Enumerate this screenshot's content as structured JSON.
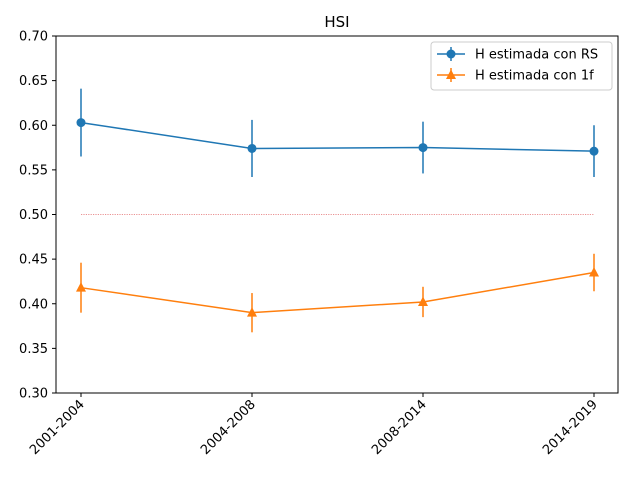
{
  "chart_data": {
    "type": "line",
    "title": "HSI",
    "categories": [
      "2001-2004",
      "2004-2008",
      "2008-2014",
      "2014-2019"
    ],
    "ylim": [
      0.3,
      0.7
    ],
    "yticks": [
      0.3,
      0.35,
      0.4,
      0.45,
      0.5,
      0.55,
      0.6,
      0.65,
      0.7
    ],
    "ytick_labels": [
      "0.30",
      "0.35",
      "0.40",
      "0.45",
      "0.50",
      "0.55",
      "0.60",
      "0.65",
      "0.70"
    ],
    "reference_line": {
      "y": 0.5,
      "color": "#d62728"
    },
    "grid": false,
    "legend_position": "top-right",
    "series": [
      {
        "name": "H estimada con RS",
        "color": "#1f77b4",
        "marker": "circle",
        "values": [
          0.603,
          0.574,
          0.575,
          0.571
        ],
        "yerr": [
          0.038,
          0.032,
          0.029,
          0.029
        ]
      },
      {
        "name": "H estimada con 1f",
        "color": "#ff7f0e",
        "marker": "triangle",
        "values": [
          0.418,
          0.39,
          0.402,
          0.435
        ],
        "yerr": [
          0.028,
          0.022,
          0.017,
          0.021
        ]
      }
    ]
  }
}
